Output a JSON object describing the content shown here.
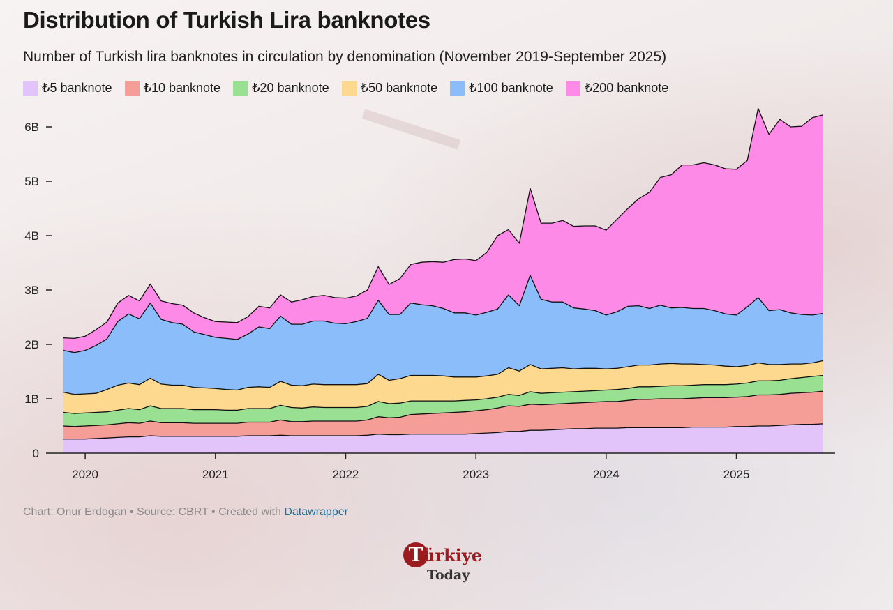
{
  "title": "Distribution of Turkish Lira banknotes",
  "subtitle": "Number of Turkish lira banknotes in circulation by denomination (November 2019-September 2025)",
  "credit": {
    "prefix": "Chart: Onur Erdogan • Source: CBRT • Created with ",
    "link": "Datawrapper"
  },
  "logo": {
    "initial": "T",
    "word": "ürkiye",
    "sub": "Today"
  },
  "chart_data": {
    "type": "area",
    "stacked": true,
    "title": "Distribution of Turkish Lira banknotes",
    "subtitle": "Number of Turkish lira banknotes in circulation by denomination (November 2019-September 2025)",
    "ylim": [
      0,
      6.5
    ],
    "y_ticks": [
      0,
      1,
      2,
      3,
      4,
      5,
      6
    ],
    "y_tick_labels": [
      "0",
      "1B",
      "2B",
      "3B",
      "4B",
      "5B",
      "6B"
    ],
    "x_ticks": [
      2020,
      2021,
      2022,
      2023,
      2024,
      2025
    ],
    "x_tick_labels": [
      "2020",
      "2021",
      "2022",
      "2023",
      "2024",
      "2025"
    ],
    "x": [
      "2019-11",
      "2019-12",
      "2020-01",
      "2020-02",
      "2020-03",
      "2020-04",
      "2020-05",
      "2020-06",
      "2020-07",
      "2020-08",
      "2020-09",
      "2020-10",
      "2020-11",
      "2020-12",
      "2021-01",
      "2021-02",
      "2021-03",
      "2021-04",
      "2021-05",
      "2021-06",
      "2021-07",
      "2021-08",
      "2021-09",
      "2021-10",
      "2021-11",
      "2021-12",
      "2022-01",
      "2022-02",
      "2022-03",
      "2022-04",
      "2022-05",
      "2022-06",
      "2022-07",
      "2022-08",
      "2022-09",
      "2022-10",
      "2022-11",
      "2022-12",
      "2023-01",
      "2023-02",
      "2023-03",
      "2023-04",
      "2023-05",
      "2023-06",
      "2023-07",
      "2023-08",
      "2023-09",
      "2023-10",
      "2023-11",
      "2023-12",
      "2024-01",
      "2024-02",
      "2024-03",
      "2024-04",
      "2024-05",
      "2024-06",
      "2024-07",
      "2024-08",
      "2024-09",
      "2024-10",
      "2024-11",
      "2024-12",
      "2025-01",
      "2025-02",
      "2025-03",
      "2025-04",
      "2025-05",
      "2025-06",
      "2025-07",
      "2025-08",
      "2025-09"
    ],
    "legend_position": "top-left",
    "grid": false,
    "series": [
      {
        "name": "₺5 banknote",
        "color": "#e2c4fb",
        "values": [
          0.26,
          0.26,
          0.26,
          0.27,
          0.28,
          0.29,
          0.3,
          0.3,
          0.32,
          0.31,
          0.31,
          0.31,
          0.31,
          0.31,
          0.31,
          0.31,
          0.31,
          0.32,
          0.32,
          0.32,
          0.33,
          0.32,
          0.32,
          0.32,
          0.32,
          0.32,
          0.32,
          0.32,
          0.33,
          0.35,
          0.34,
          0.34,
          0.35,
          0.35,
          0.35,
          0.35,
          0.35,
          0.35,
          0.36,
          0.37,
          0.38,
          0.4,
          0.4,
          0.42,
          0.42,
          0.43,
          0.44,
          0.45,
          0.45,
          0.46,
          0.46,
          0.46,
          0.47,
          0.47,
          0.47,
          0.47,
          0.47,
          0.47,
          0.48,
          0.48,
          0.48,
          0.48,
          0.49,
          0.49,
          0.5,
          0.5,
          0.51,
          0.52,
          0.53,
          0.53,
          0.54
        ]
      },
      {
        "name": "₺10 banknote",
        "color": "#f59e98",
        "values": [
          0.24,
          0.23,
          0.24,
          0.24,
          0.24,
          0.25,
          0.26,
          0.25,
          0.27,
          0.25,
          0.25,
          0.25,
          0.24,
          0.24,
          0.24,
          0.24,
          0.24,
          0.25,
          0.25,
          0.25,
          0.28,
          0.26,
          0.26,
          0.27,
          0.27,
          0.27,
          0.27,
          0.27,
          0.28,
          0.32,
          0.31,
          0.32,
          0.36,
          0.37,
          0.38,
          0.39,
          0.4,
          0.41,
          0.42,
          0.43,
          0.45,
          0.47,
          0.46,
          0.48,
          0.47,
          0.47,
          0.47,
          0.47,
          0.48,
          0.48,
          0.49,
          0.49,
          0.5,
          0.52,
          0.52,
          0.53,
          0.53,
          0.53,
          0.53,
          0.54,
          0.54,
          0.54,
          0.54,
          0.55,
          0.57,
          0.57,
          0.57,
          0.58,
          0.58,
          0.59,
          0.6
        ]
      },
      {
        "name": "₺20 banknote",
        "color": "#99e093",
        "values": [
          0.25,
          0.24,
          0.24,
          0.24,
          0.24,
          0.25,
          0.26,
          0.25,
          0.28,
          0.26,
          0.26,
          0.26,
          0.25,
          0.25,
          0.25,
          0.24,
          0.24,
          0.25,
          0.25,
          0.25,
          0.27,
          0.26,
          0.25,
          0.26,
          0.25,
          0.25,
          0.25,
          0.25,
          0.25,
          0.28,
          0.26,
          0.26,
          0.25,
          0.24,
          0.23,
          0.22,
          0.21,
          0.21,
          0.2,
          0.2,
          0.2,
          0.21,
          0.2,
          0.23,
          0.21,
          0.21,
          0.21,
          0.21,
          0.21,
          0.21,
          0.21,
          0.22,
          0.22,
          0.23,
          0.23,
          0.23,
          0.24,
          0.24,
          0.24,
          0.24,
          0.24,
          0.24,
          0.24,
          0.25,
          0.26,
          0.26,
          0.26,
          0.27,
          0.28,
          0.29,
          0.29
        ]
      },
      {
        "name": "₺50 banknote",
        "color": "#fcd98e",
        "values": [
          0.37,
          0.35,
          0.35,
          0.35,
          0.41,
          0.46,
          0.47,
          0.46,
          0.51,
          0.45,
          0.43,
          0.43,
          0.41,
          0.4,
          0.39,
          0.38,
          0.37,
          0.39,
          0.4,
          0.39,
          0.44,
          0.41,
          0.41,
          0.42,
          0.42,
          0.42,
          0.42,
          0.42,
          0.42,
          0.5,
          0.43,
          0.45,
          0.47,
          0.47,
          0.47,
          0.46,
          0.44,
          0.43,
          0.42,
          0.42,
          0.42,
          0.49,
          0.45,
          0.5,
          0.45,
          0.45,
          0.45,
          0.42,
          0.42,
          0.41,
          0.39,
          0.39,
          0.4,
          0.4,
          0.4,
          0.41,
          0.41,
          0.4,
          0.39,
          0.37,
          0.36,
          0.34,
          0.32,
          0.32,
          0.33,
          0.3,
          0.29,
          0.27,
          0.25,
          0.25,
          0.27
        ]
      },
      {
        "name": "₺100 banknote",
        "color": "#8bbdfb",
        "values": [
          0.77,
          0.77,
          0.8,
          0.88,
          0.93,
          1.17,
          1.27,
          1.21,
          1.38,
          1.19,
          1.15,
          1.12,
          1.02,
          0.98,
          0.94,
          0.94,
          0.93,
          0.98,
          1.1,
          1.08,
          1.2,
          1.12,
          1.13,
          1.16,
          1.17,
          1.13,
          1.12,
          1.16,
          1.2,
          1.36,
          1.21,
          1.18,
          1.33,
          1.3,
          1.28,
          1.24,
          1.18,
          1.18,
          1.14,
          1.17,
          1.2,
          1.34,
          1.2,
          1.64,
          1.28,
          1.22,
          1.21,
          1.12,
          1.09,
          1.06,
          0.99,
          1.04,
          1.11,
          1.09,
          1.04,
          1.08,
          1.02,
          1.04,
          1.02,
          1.03,
          1.0,
          0.96,
          0.95,
          1.08,
          1.2,
          0.99,
          1.01,
          0.94,
          0.91,
          0.88,
          0.87
        ]
      },
      {
        "name": "₺200 banknote",
        "color": "#fd8ae7",
        "values": [
          0.23,
          0.26,
          0.26,
          0.29,
          0.31,
          0.34,
          0.34,
          0.33,
          0.35,
          0.34,
          0.35,
          0.35,
          0.35,
          0.31,
          0.29,
          0.3,
          0.31,
          0.32,
          0.38,
          0.38,
          0.39,
          0.41,
          0.45,
          0.45,
          0.47,
          0.47,
          0.47,
          0.47,
          0.52,
          0.62,
          0.55,
          0.66,
          0.71,
          0.78,
          0.81,
          0.85,
          0.98,
          0.99,
          1.0,
          1.1,
          1.35,
          1.2,
          1.15,
          1.6,
          1.4,
          1.45,
          1.5,
          1.5,
          1.53,
          1.56,
          1.56,
          1.7,
          1.8,
          1.97,
          2.14,
          2.35,
          2.45,
          2.62,
          2.64,
          2.68,
          2.68,
          2.67,
          2.68,
          2.69,
          3.48,
          3.24,
          3.5,
          3.42,
          3.46,
          3.63,
          3.65
        ]
      }
    ]
  }
}
